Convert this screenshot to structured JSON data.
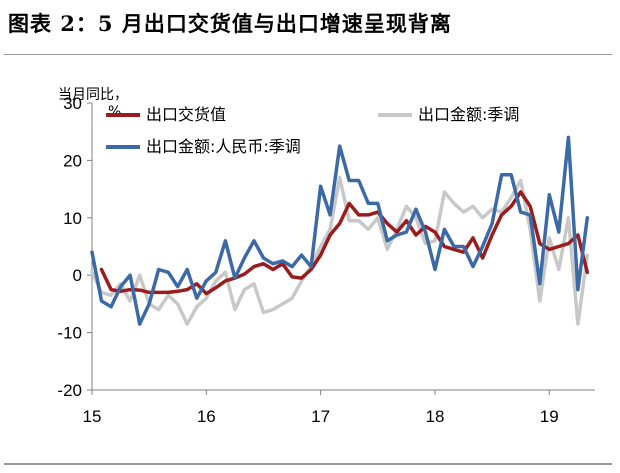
{
  "page": {
    "title": "图表 2：5 月出口交货值与出口增速呈现背离"
  },
  "chart_data": {
    "type": "line",
    "ylabel": "当月同比，%",
    "ylim": [
      -20,
      30
    ],
    "yticks": [
      30,
      20,
      10,
      0,
      -10,
      -20
    ],
    "xlim": [
      2015.0,
      2019.4
    ],
    "xticks": [
      {
        "value": 2015.0,
        "label": "15"
      },
      {
        "value": 2016.0,
        "label": "16"
      },
      {
        "value": 2017.0,
        "label": "17"
      },
      {
        "value": 2018.0,
        "label": "18"
      },
      {
        "value": 2019.0,
        "label": "19"
      }
    ],
    "grid": false,
    "legend_position": "top",
    "series": [
      {
        "name": "出口交货值",
        "color": "#9b1c1c",
        "width": 3.5,
        "points": [
          [
            2015.083,
            1.0
          ],
          [
            2015.167,
            -2.5
          ],
          [
            2015.25,
            -2.8
          ],
          [
            2015.333,
            -2.5
          ],
          [
            2015.417,
            -2.6
          ],
          [
            2015.5,
            -3.0
          ],
          [
            2015.583,
            -3.0
          ],
          [
            2015.667,
            -3.0
          ],
          [
            2015.75,
            -2.8
          ],
          [
            2015.833,
            -2.5
          ],
          [
            2015.917,
            -1.5
          ],
          [
            2016.0,
            -3.2
          ],
          [
            2016.083,
            -2.2
          ],
          [
            2016.167,
            -1.0
          ],
          [
            2016.25,
            -0.5
          ],
          [
            2016.333,
            0.2
          ],
          [
            2016.417,
            1.5
          ],
          [
            2016.5,
            2.0
          ],
          [
            2016.583,
            1.0
          ],
          [
            2016.667,
            2.0
          ],
          [
            2016.75,
            -0.3
          ],
          [
            2016.833,
            -0.5
          ],
          [
            2016.917,
            1.0
          ],
          [
            2017.0,
            3.5
          ],
          [
            2017.083,
            7.0
          ],
          [
            2017.167,
            9.0
          ],
          [
            2017.25,
            12.5
          ],
          [
            2017.333,
            10.5
          ],
          [
            2017.417,
            10.5
          ],
          [
            2017.5,
            11.0
          ],
          [
            2017.583,
            9.0
          ],
          [
            2017.667,
            7.5
          ],
          [
            2017.75,
            9.5
          ],
          [
            2017.833,
            7.0
          ],
          [
            2017.917,
            8.5
          ],
          [
            2018.0,
            7.5
          ],
          [
            2018.083,
            5.0
          ],
          [
            2018.167,
            4.5
          ],
          [
            2018.25,
            4.0
          ],
          [
            2018.333,
            6.5
          ],
          [
            2018.417,
            3.0
          ],
          [
            2018.5,
            7.0
          ],
          [
            2018.583,
            10.5
          ],
          [
            2018.667,
            12.0
          ],
          [
            2018.75,
            14.5
          ],
          [
            2018.833,
            12.0
          ],
          [
            2018.917,
            5.5
          ],
          [
            2019.0,
            4.5
          ],
          [
            2019.083,
            5.0
          ],
          [
            2019.167,
            5.5
          ],
          [
            2019.25,
            7.0
          ],
          [
            2019.333,
            0.5
          ]
        ]
      },
      {
        "name": "出口金额:季调",
        "color": "#c8c8c8",
        "width": 3.5,
        "points": [
          [
            2015.0,
            0.5
          ],
          [
            2015.083,
            -3.0
          ],
          [
            2015.167,
            -3.5
          ],
          [
            2015.25,
            -1.5
          ],
          [
            2015.333,
            -4.5
          ],
          [
            2015.417,
            0.0
          ],
          [
            2015.5,
            -5.0
          ],
          [
            2015.583,
            -6.0
          ],
          [
            2015.667,
            -3.5
          ],
          [
            2015.75,
            -5.0
          ],
          [
            2015.833,
            -8.5
          ],
          [
            2015.917,
            -5.5
          ],
          [
            2016.0,
            -4.0
          ],
          [
            2016.083,
            -1.0
          ],
          [
            2016.167,
            0.5
          ],
          [
            2016.25,
            -6.0
          ],
          [
            2016.333,
            -2.5
          ],
          [
            2016.417,
            -1.5
          ],
          [
            2016.5,
            -6.5
          ],
          [
            2016.583,
            -6.0
          ],
          [
            2016.667,
            -5.0
          ],
          [
            2016.75,
            -4.0
          ],
          [
            2016.833,
            -1.0
          ],
          [
            2016.917,
            1.5
          ],
          [
            2017.0,
            5.0
          ],
          [
            2017.083,
            8.0
          ],
          [
            2017.167,
            17.0
          ],
          [
            2017.25,
            9.5
          ],
          [
            2017.333,
            9.5
          ],
          [
            2017.417,
            8.0
          ],
          [
            2017.5,
            10.0
          ],
          [
            2017.583,
            4.5
          ],
          [
            2017.667,
            8.0
          ],
          [
            2017.75,
            12.0
          ],
          [
            2017.833,
            10.0
          ],
          [
            2017.917,
            5.5
          ],
          [
            2018.0,
            6.0
          ],
          [
            2018.083,
            14.5
          ],
          [
            2018.167,
            12.5
          ],
          [
            2018.25,
            11.0
          ],
          [
            2018.333,
            12.0
          ],
          [
            2018.417,
            10.0
          ],
          [
            2018.5,
            11.5
          ],
          [
            2018.583,
            11.0
          ],
          [
            2018.667,
            13.5
          ],
          [
            2018.75,
            16.5
          ],
          [
            2018.833,
            8.0
          ],
          [
            2018.917,
            -4.5
          ],
          [
            2019.0,
            6.5
          ],
          [
            2019.083,
            1.0
          ],
          [
            2019.167,
            10.0
          ],
          [
            2019.25,
            -8.5
          ],
          [
            2019.333,
            3.5
          ]
        ]
      },
      {
        "name": "出口金额:人民币:季调",
        "color": "#3c6aa6",
        "width": 3.5,
        "points": [
          [
            2015.0,
            4.0
          ],
          [
            2015.083,
            -4.5
          ],
          [
            2015.167,
            -5.5
          ],
          [
            2015.25,
            -2.0
          ],
          [
            2015.333,
            0.0
          ],
          [
            2015.417,
            -8.5
          ],
          [
            2015.5,
            -5.0
          ],
          [
            2015.583,
            1.0
          ],
          [
            2015.667,
            0.5
          ],
          [
            2015.75,
            -2.0
          ],
          [
            2015.833,
            1.0
          ],
          [
            2015.917,
            -4.0
          ],
          [
            2016.0,
            -1.0
          ],
          [
            2016.083,
            0.5
          ],
          [
            2016.167,
            6.0
          ],
          [
            2016.25,
            -0.5
          ],
          [
            2016.333,
            3.0
          ],
          [
            2016.417,
            6.0
          ],
          [
            2016.5,
            3.0
          ],
          [
            2016.583,
            2.0
          ],
          [
            2016.667,
            2.5
          ],
          [
            2016.75,
            1.5
          ],
          [
            2016.833,
            3.5
          ],
          [
            2016.917,
            1.5
          ],
          [
            2017.0,
            15.5
          ],
          [
            2017.083,
            10.5
          ],
          [
            2017.167,
            22.5
          ],
          [
            2017.25,
            16.5
          ],
          [
            2017.333,
            16.5
          ],
          [
            2017.417,
            12.5
          ],
          [
            2017.5,
            12.5
          ],
          [
            2017.583,
            6.0
          ],
          [
            2017.667,
            7.0
          ],
          [
            2017.75,
            7.5
          ],
          [
            2017.833,
            11.5
          ],
          [
            2017.917,
            7.5
          ],
          [
            2018.0,
            1.0
          ],
          [
            2018.083,
            8.0
          ],
          [
            2018.167,
            5.0
          ],
          [
            2018.25,
            5.0
          ],
          [
            2018.333,
            1.5
          ],
          [
            2018.417,
            5.0
          ],
          [
            2018.5,
            9.0
          ],
          [
            2018.583,
            17.5
          ],
          [
            2018.667,
            17.5
          ],
          [
            2018.75,
            11.0
          ],
          [
            2018.833,
            10.5
          ],
          [
            2018.917,
            -1.5
          ],
          [
            2019.0,
            14.0
          ],
          [
            2019.083,
            7.5
          ],
          [
            2019.167,
            24.0
          ],
          [
            2019.25,
            -2.5
          ],
          [
            2019.333,
            10.0
          ]
        ]
      }
    ]
  }
}
